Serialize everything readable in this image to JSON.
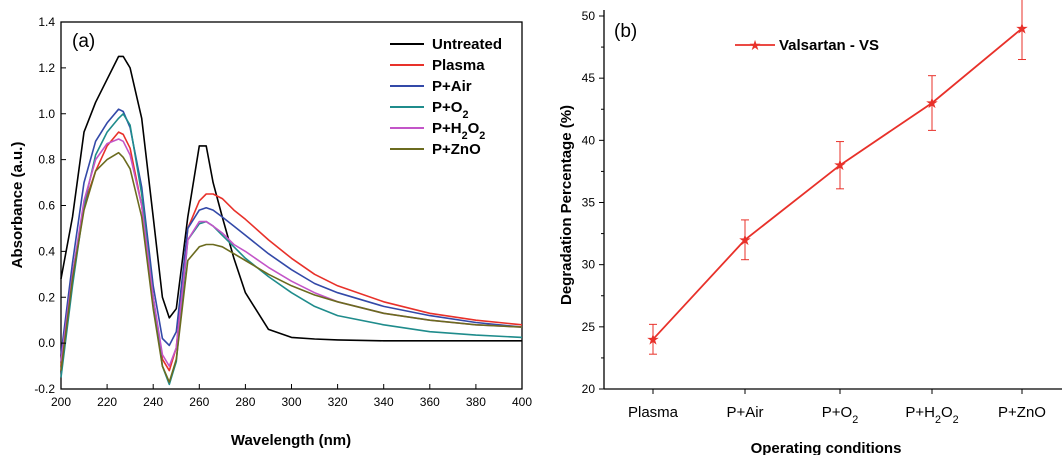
{
  "chart_data": [
    {
      "panel_label": "(a)",
      "type": "line",
      "xlabel": "Wavelength (nm)",
      "ylabel": "Absorbance (a.u.)",
      "xlim": [
        200,
        400
      ],
      "ylim": [
        -0.2,
        1.4
      ],
      "xticks": [
        "200",
        "220",
        "240",
        "260",
        "280",
        "300",
        "320",
        "340",
        "360",
        "380",
        "400"
      ],
      "yticks": [
        "-0.2",
        "0.0",
        "0.2",
        "0.4",
        "0.6",
        "0.8",
        "1.0",
        "1.2",
        "1.4"
      ],
      "legend_position": "top-right",
      "grid": false,
      "x": [
        200,
        205,
        210,
        215,
        220,
        225,
        227,
        230,
        235,
        240,
        244,
        247,
        250,
        255,
        260,
        263,
        266,
        270,
        275,
        280,
        290,
        300,
        310,
        320,
        340,
        360,
        380,
        400
      ],
      "series": [
        {
          "name": "Untreated",
          "color": "#000000",
          "values": [
            0.28,
            0.55,
            0.92,
            1.05,
            1.15,
            1.25,
            1.25,
            1.2,
            0.98,
            0.55,
            0.2,
            0.11,
            0.15,
            0.55,
            0.86,
            0.86,
            0.7,
            0.55,
            0.37,
            0.22,
            0.06,
            0.025,
            0.018,
            0.014,
            0.01,
            0.01,
            0.01,
            0.01
          ]
        },
        {
          "name": "Plasma",
          "color": "#e8312a",
          "values": [
            -0.1,
            0.3,
            0.6,
            0.75,
            0.86,
            0.92,
            0.91,
            0.85,
            0.6,
            0.2,
            -0.07,
            -0.12,
            -0.02,
            0.5,
            0.62,
            0.65,
            0.65,
            0.63,
            0.58,
            0.54,
            0.45,
            0.37,
            0.3,
            0.25,
            0.18,
            0.13,
            0.1,
            0.08
          ]
        },
        {
          "name": "P+Air",
          "color": "#3349a8",
          "values": [
            -0.05,
            0.35,
            0.7,
            0.88,
            0.96,
            1.02,
            1.01,
            0.94,
            0.68,
            0.25,
            0.02,
            -0.01,
            0.05,
            0.5,
            0.58,
            0.59,
            0.58,
            0.55,
            0.51,
            0.47,
            0.39,
            0.32,
            0.26,
            0.22,
            0.16,
            0.12,
            0.09,
            0.07
          ]
        },
        {
          "name": "P+O_2",
          "color": "#1f8c8c",
          "values": [
            -0.15,
            0.25,
            0.6,
            0.82,
            0.92,
            0.98,
            1.0,
            0.95,
            0.65,
            0.2,
            -0.1,
            -0.18,
            -0.08,
            0.45,
            0.52,
            0.53,
            0.51,
            0.47,
            0.42,
            0.37,
            0.29,
            0.22,
            0.16,
            0.12,
            0.08,
            0.05,
            0.035,
            0.025
          ]
        },
        {
          "name": "P+H_2O_2",
          "color": "#c355c8",
          "values": [
            -0.08,
            0.3,
            0.62,
            0.8,
            0.87,
            0.89,
            0.88,
            0.82,
            0.6,
            0.2,
            -0.05,
            -0.1,
            -0.02,
            0.45,
            0.53,
            0.53,
            0.51,
            0.48,
            0.43,
            0.4,
            0.33,
            0.27,
            0.22,
            0.18,
            0.13,
            0.1,
            0.08,
            0.07
          ]
        },
        {
          "name": "P+ZnO",
          "color": "#6b6b1f",
          "values": [
            -0.12,
            0.28,
            0.58,
            0.75,
            0.8,
            0.83,
            0.81,
            0.76,
            0.55,
            0.15,
            -0.1,
            -0.17,
            -0.07,
            0.36,
            0.42,
            0.43,
            0.43,
            0.42,
            0.39,
            0.36,
            0.3,
            0.25,
            0.21,
            0.18,
            0.13,
            0.1,
            0.08,
            0.07
          ]
        }
      ]
    },
    {
      "panel_label": "(b)",
      "type": "line",
      "xlabel": "Operating conditions",
      "ylabel": "Degradation Percentage (%)",
      "ylim": [
        20,
        52
      ],
      "yticks": [
        "20",
        "25",
        "30",
        "35",
        "40",
        "45",
        "50"
      ],
      "categories": [
        "Plasma",
        "P+Air",
        "P+O_2",
        "P+H_2O_2",
        "P+ZnO"
      ],
      "legend_position": "top-left",
      "grid": false,
      "series": [
        {
          "name": "Valsartan - VS",
          "color": "#e8312a",
          "marker": "star",
          "values": [
            24,
            32,
            38,
            43,
            49
          ],
          "errors": [
            1.2,
            1.6,
            1.9,
            2.2,
            2.5
          ]
        }
      ]
    }
  ]
}
